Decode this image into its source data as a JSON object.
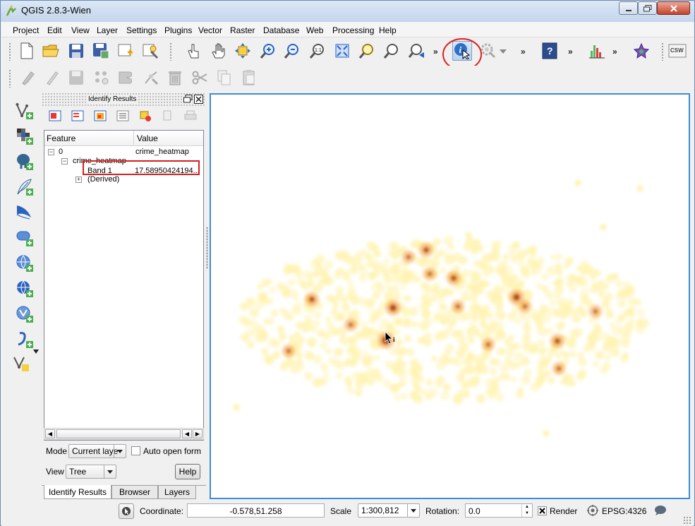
{
  "window": {
    "title": "QGIS 2.8.3-Wien"
  },
  "menu": [
    {
      "label": "Project"
    },
    {
      "label": "Edit"
    },
    {
      "label": "View"
    },
    {
      "label": "Layer"
    },
    {
      "label": "Settings"
    },
    {
      "label": "Plugins"
    },
    {
      "label": "Vector"
    },
    {
      "label": "Raster"
    },
    {
      "label": "Database"
    },
    {
      "label": "Web"
    },
    {
      "label": "Processing"
    },
    {
      "label": "Help"
    }
  ],
  "toolbar": {
    "overflow": "»",
    "csw_label": "CSW",
    "help_icon_text": "?"
  },
  "identify_panel": {
    "title": "Identify Results",
    "columns": {
      "feature": "Feature",
      "value": "Value"
    },
    "rows": [
      {
        "feature": "0",
        "value": "crime_heatmap"
      },
      {
        "feature": "crime_heatmap",
        "value": ""
      },
      {
        "feature": "Band 1",
        "value": "17.58950424194..."
      },
      {
        "feature": "(Derived)",
        "value": ""
      }
    ],
    "mode_label": "Mode",
    "mode_value": "Current laye",
    "auto_open_label": "Auto open form",
    "auto_open_checked": false,
    "view_label": "View",
    "view_value": "Tree",
    "help_button": "Help",
    "tabs": [
      {
        "label": "Identify Results"
      },
      {
        "label": "Browser"
      },
      {
        "label": "Layers"
      }
    ]
  },
  "status": {
    "coordinate_label": "Coordinate:",
    "coordinate_value": "-0.578,51.258",
    "scale_label": "Scale",
    "scale_value": "1:300,812",
    "rotation_label": "Rotation:",
    "rotation_value": "0.0",
    "render_label": "Render",
    "render_checked": true,
    "crs": "EPSG:4326"
  },
  "colors": {
    "accent_circle": "#e02020",
    "highlight_box": "#d42020",
    "canvas_border": "#3c8dd8",
    "heat_low": "#fff3b0",
    "heat_mid": "#f5a040",
    "heat_high": "#a33000"
  }
}
